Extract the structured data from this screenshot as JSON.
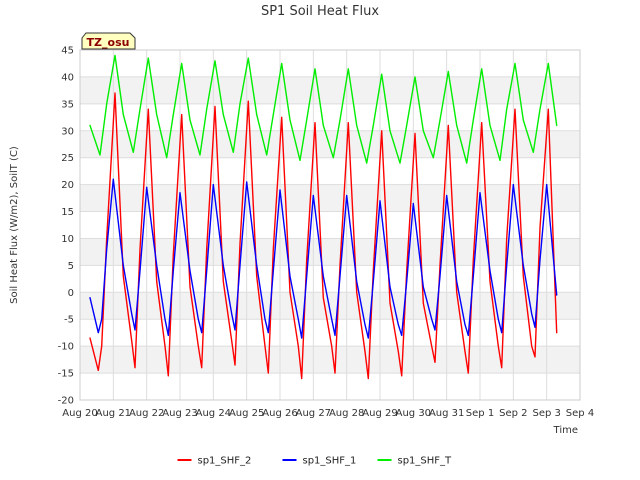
{
  "chart_data": {
    "type": "line",
    "title": "SP1 Soil Heat Flux",
    "xlabel": "Time",
    "ylabel": "Soil Heat Flux (W/m2), SoilT (C)",
    "badge": "TZ_osu",
    "ylim": [
      -20,
      45
    ],
    "yticks": [
      -20,
      -15,
      -10,
      -5,
      0,
      5,
      10,
      15,
      20,
      25,
      30,
      35,
      40,
      45
    ],
    "xlim": [
      0,
      15
    ],
    "xticks": [
      0,
      1,
      2,
      3,
      4,
      5,
      6,
      7,
      8,
      9,
      10,
      11,
      12,
      13,
      14,
      15
    ],
    "xtick_labels": [
      "Aug 20",
      "Aug 21",
      "Aug 22",
      "Aug 23",
      "Aug 24",
      "Aug 25",
      "Aug 26",
      "Aug 27",
      "Aug 28",
      "Aug 29",
      "Aug 30",
      "Aug 31",
      "Sep 1",
      "Sep 2",
      "Sep 3",
      "Sep 4"
    ],
    "grid": true,
    "legend_position": "bottom",
    "series": [
      {
        "name": "sp1_SHF_2",
        "color": "#ff0000",
        "x": [
          0.3,
          0.55,
          0.65,
          0.8,
          1.05,
          1.3,
          1.55,
          1.65,
          1.8,
          2.05,
          2.3,
          2.55,
          2.65,
          2.8,
          3.05,
          3.3,
          3.55,
          3.65,
          3.8,
          4.05,
          4.3,
          4.55,
          4.65,
          4.8,
          5.05,
          5.3,
          5.55,
          5.65,
          5.8,
          6.05,
          6.3,
          6.55,
          6.65,
          6.8,
          7.05,
          7.3,
          7.55,
          7.65,
          7.8,
          8.05,
          8.3,
          8.55,
          8.65,
          8.8,
          9.05,
          9.3,
          9.55,
          9.65,
          9.8,
          10.05,
          10.3,
          10.55,
          10.65,
          10.8,
          11.05,
          11.3,
          11.55,
          11.65,
          11.8,
          12.05,
          12.3,
          12.55,
          12.65,
          12.8,
          13.05,
          13.3,
          13.55,
          13.65,
          13.8,
          14.05,
          14.3
        ],
        "y": [
          -8.5,
          -14.5,
          -10,
          10,
          37,
          3,
          -9,
          -14,
          8,
          34,
          2,
          -10,
          -15.5,
          7,
          33,
          1,
          -10,
          -14,
          8,
          34.5,
          2,
          -9,
          -13.5,
          9,
          35.5,
          3,
          -10,
          -15,
          8,
          32.5,
          0,
          -10,
          -16,
          6,
          31.5,
          -1,
          -10,
          -15,
          5,
          31.5,
          0,
          -11,
          -16,
          4,
          30,
          -2,
          -11,
          -15.5,
          4,
          29.5,
          -2,
          -10,
          -13,
          5,
          31,
          0,
          -11,
          -15,
          6,
          31.5,
          2,
          -10,
          -14,
          10,
          34,
          3,
          -10,
          -12,
          12,
          34,
          -7.5
        ]
      },
      {
        "name": "sp1_SHF_1",
        "color": "#0000ff",
        "x": [
          0.3,
          0.55,
          0.65,
          0.8,
          1.0,
          1.3,
          1.55,
          1.65,
          1.8,
          2.0,
          2.3,
          2.55,
          2.65,
          2.8,
          3.0,
          3.3,
          3.55,
          3.65,
          3.8,
          4.0,
          4.3,
          4.55,
          4.65,
          4.8,
          5.0,
          5.3,
          5.55,
          5.65,
          5.8,
          6.0,
          6.3,
          6.55,
          6.65,
          6.8,
          7.0,
          7.3,
          7.55,
          7.65,
          7.8,
          8.0,
          8.3,
          8.55,
          8.65,
          8.8,
          9.0,
          9.3,
          9.55,
          9.65,
          9.8,
          10.0,
          10.3,
          10.55,
          10.65,
          10.8,
          11.0,
          11.3,
          11.55,
          11.65,
          11.8,
          12.0,
          12.3,
          12.55,
          12.65,
          12.8,
          13.0,
          13.3,
          13.55,
          13.65,
          13.8,
          14.0,
          14.3
        ],
        "y": [
          -1,
          -7.5,
          -5,
          8,
          21,
          5,
          -4,
          -7,
          4,
          19.5,
          5,
          -5,
          -8,
          4,
          18.5,
          4,
          -5,
          -7.5,
          4,
          20,
          5,
          -4,
          -7,
          5,
          20.5,
          5,
          -5,
          -7.5,
          4,
          19,
          3,
          -5,
          -8.5,
          3,
          18,
          3,
          -5,
          -8,
          3,
          18,
          2,
          -6,
          -8.5,
          2,
          17,
          1,
          -6,
          -8,
          2,
          16.5,
          1,
          -5,
          -7,
          3,
          18,
          2,
          -6,
          -8,
          3,
          18.5,
          4,
          -5,
          -7.5,
          5,
          20,
          5,
          -4,
          -6.5,
          6,
          20,
          -0.5
        ]
      },
      {
        "name": "sp1_SHF_T",
        "color": "#00ee00",
        "x": [
          0.3,
          0.6,
          0.8,
          1.05,
          1.3,
          1.6,
          1.8,
          2.05,
          2.3,
          2.6,
          2.8,
          3.05,
          3.3,
          3.6,
          3.8,
          4.05,
          4.3,
          4.6,
          4.8,
          5.05,
          5.3,
          5.6,
          5.8,
          6.05,
          6.3,
          6.6,
          6.8,
          7.05,
          7.3,
          7.6,
          7.8,
          8.05,
          8.3,
          8.6,
          8.8,
          9.05,
          9.3,
          9.6,
          9.8,
          10.05,
          10.3,
          10.6,
          10.8,
          11.05,
          11.3,
          11.6,
          11.8,
          12.05,
          12.3,
          12.6,
          12.8,
          13.05,
          13.3,
          13.6,
          13.8,
          14.05,
          14.3
        ],
        "y": [
          31,
          25.5,
          35,
          44,
          33,
          26,
          34,
          43.5,
          33,
          25,
          33,
          42.5,
          32,
          25.5,
          34,
          43,
          33,
          26,
          35,
          43.5,
          33,
          25.5,
          33,
          42.5,
          32,
          24.5,
          32,
          41.5,
          31,
          25,
          32,
          41.5,
          31,
          24,
          31,
          40.5,
          30,
          24,
          31,
          40,
          30,
          25,
          32,
          41,
          31,
          24,
          32,
          41.5,
          31,
          24.5,
          34,
          42.5,
          32,
          26,
          34,
          42.5,
          31
        ]
      }
    ]
  }
}
